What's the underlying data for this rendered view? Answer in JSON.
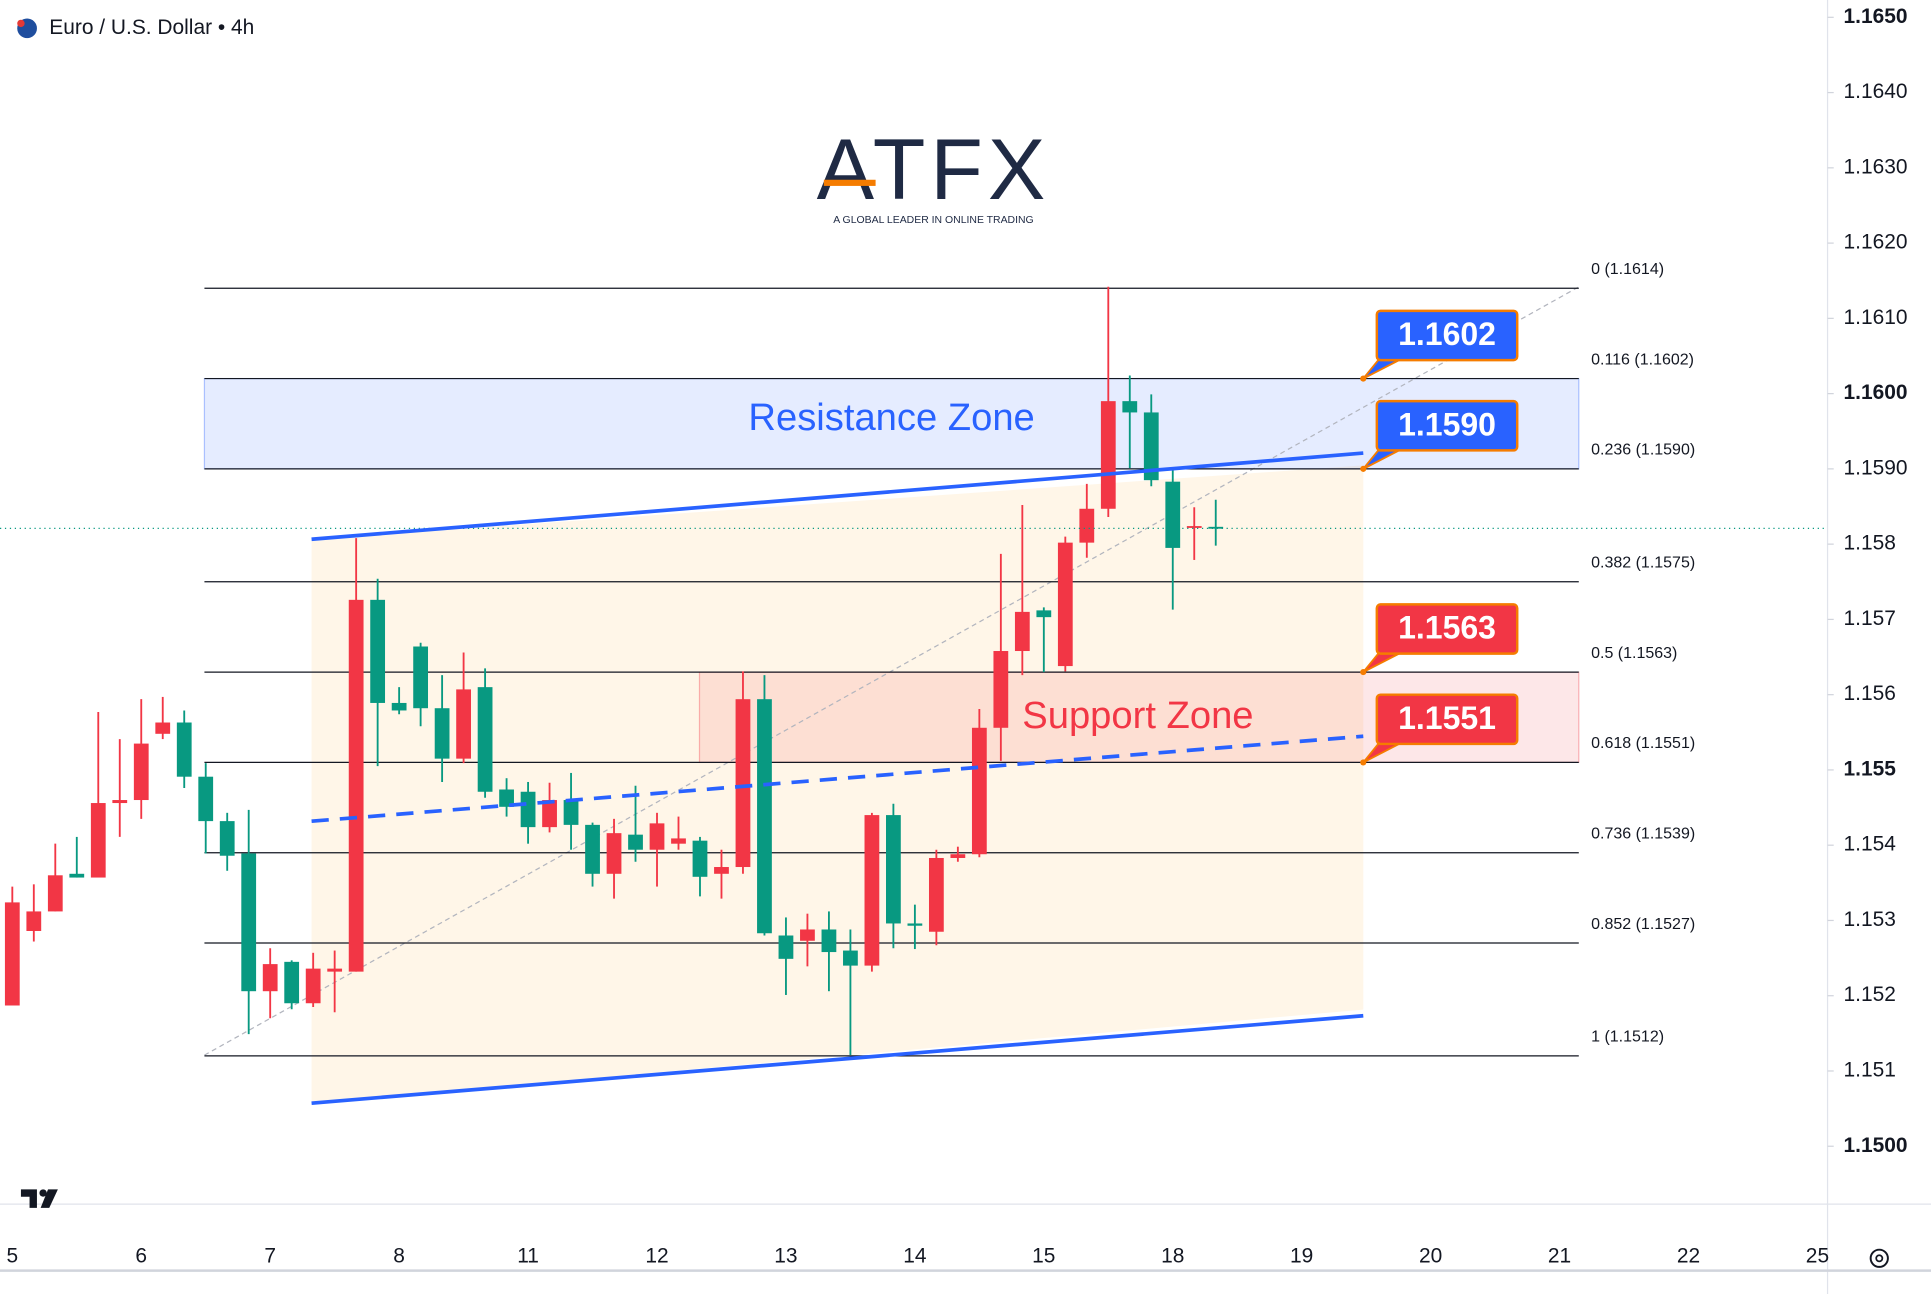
{
  "chart_data": {
    "type": "candlestick",
    "title": "Euro / U.S. Dollar • 4h",
    "watermark": {
      "name": "ATFX",
      "tagline": "A GLOBAL LEADER IN ONLINE TRADING"
    },
    "up_color": "#f23645",
    "down_color": "#089981",
    "categories": [
      "5",
      null,
      null,
      null,
      null,
      null,
      "6",
      null,
      null,
      null,
      null,
      null,
      "7",
      null,
      null,
      null,
      null,
      null,
      "8",
      null,
      null,
      null,
      null,
      null,
      "11",
      null,
      null,
      null,
      null,
      null,
      "12",
      null,
      null,
      null,
      null,
      null,
      "13",
      null,
      null,
      null,
      null,
      null,
      "14",
      null,
      null,
      null,
      null,
      null,
      "15",
      null,
      null,
      null,
      null,
      null,
      "18",
      null,
      null,
      null,
      null,
      null,
      "19",
      null,
      null,
      null,
      null,
      null,
      "20",
      null,
      null,
      null,
      null,
      null,
      "21",
      null,
      null,
      null,
      null,
      null,
      "22",
      null,
      null,
      null,
      null,
      null,
      "25"
    ],
    "open": [
      1.15187,
      1.15286,
      1.15312,
      1.15362,
      1.15357,
      1.15456,
      1.1546,
      1.15548,
      1.15563,
      1.15491,
      1.15432,
      1.15389,
      1.15206,
      1.15245,
      1.1519,
      1.15232,
      1.15232,
      1.15726,
      1.15589,
      1.15664,
      1.15582,
      1.15515,
      1.1561,
      1.15474,
      1.15471,
      1.15424,
      1.1546,
      1.15427,
      1.15362,
      1.15414,
      1.15394,
      1.15402,
      1.15406,
      1.15362,
      1.15371,
      1.15594,
      1.1528,
      1.15273,
      1.15288,
      1.1526,
      1.1524,
      1.1544,
      1.15296,
      1.15285,
      1.15383,
      1.15388,
      1.15556,
      1.15658,
      1.15712,
      1.15638,
      1.15802,
      1.15847,
      1.1599,
      1.15975,
      1.15883,
      1.15823,
      1.15823,
      null,
      null,
      null,
      null,
      null,
      null,
      null,
      null,
      null,
      null,
      null,
      null,
      null,
      null,
      null,
      null,
      null,
      null,
      null,
      null,
      null,
      null,
      null,
      null,
      null,
      null,
      null,
      null
    ],
    "high": [
      1.15345,
      1.15348,
      1.15402,
      1.15411,
      1.15577,
      1.15541,
      1.15594,
      1.15597,
      1.15579,
      1.15509,
      1.15443,
      1.15447,
      1.15263,
      1.15247,
      1.15257,
      1.1526,
      1.15808,
      1.15754,
      1.1561,
      1.15669,
      1.15626,
      1.15656,
      1.15635,
      1.15489,
      1.15484,
      1.15483,
      1.15496,
      1.1543,
      1.15435,
      1.15479,
      1.15443,
      1.15438,
      1.15411,
      1.15394,
      1.15631,
      1.15626,
      1.15304,
      1.15309,
      1.15312,
      1.15288,
      1.15443,
      1.15455,
      1.15321,
      1.15394,
      1.15398,
      1.15581,
      1.15787,
      1.15852,
      1.15716,
      1.1581,
      1.1588,
      1.16142,
      1.16024,
      1.15999,
      1.159,
      1.15849,
      1.15859,
      null,
      null,
      null,
      null,
      null,
      null,
      null,
      null,
      null,
      null,
      null,
      null,
      null,
      null,
      null,
      null,
      null,
      null,
      null,
      null,
      null,
      null,
      null,
      null,
      null,
      null,
      null,
      null
    ],
    "low": [
      1.15187,
      1.15272,
      1.15312,
      1.15357,
      1.15357,
      1.15411,
      1.15435,
      1.15541,
      1.15476,
      1.15389,
      1.15366,
      1.15149,
      1.1517,
      1.15182,
      1.15185,
      1.15178,
      1.15232,
      1.15505,
      1.15574,
      1.15558,
      1.15484,
      1.15509,
      1.15463,
      1.15438,
      1.15402,
      1.15417,
      1.15394,
      1.15345,
      1.15329,
      1.15378,
      1.15345,
      1.15394,
      1.15332,
      1.15329,
      1.15362,
      1.1528,
      1.15201,
      1.15239,
      1.15206,
      1.15121,
      1.15232,
      1.15263,
      1.15262,
      1.15267,
      1.15378,
      1.15384,
      1.15512,
      1.15626,
      1.1563,
      1.15631,
      1.15782,
      1.15836,
      1.15901,
      1.15877,
      1.15713,
      1.15779,
      1.15798,
      null,
      null,
      null,
      null,
      null,
      null,
      null,
      null,
      null,
      null,
      null,
      null,
      null,
      null,
      null,
      null,
      null,
      null,
      null,
      null,
      null,
      null,
      null,
      null,
      null,
      null,
      null,
      null
    ],
    "close": [
      1.15324,
      1.15312,
      1.1536,
      1.15357,
      1.15456,
      1.1546,
      1.15535,
      1.15563,
      1.15491,
      1.15432,
      1.15386,
      1.15206,
      1.15242,
      1.1519,
      1.15236,
      1.15236,
      1.15726,
      1.15589,
      1.15579,
      1.15582,
      1.15515,
      1.15607,
      1.15471,
      1.15451,
      1.15424,
      1.1546,
      1.15427,
      1.15362,
      1.15416,
      1.15394,
      1.15429,
      1.15409,
      1.15358,
      1.15371,
      1.15594,
      1.15283,
      1.15249,
      1.15288,
      1.15258,
      1.1524,
      1.1544,
      1.15296,
      1.15293,
      1.15383,
      1.15388,
      1.15556,
      1.15658,
      1.1571,
      1.15703,
      1.15802,
      1.15847,
      1.1599,
      1.15975,
      1.15885,
      1.15795,
      1.15824,
      1.15821,
      null,
      null,
      null,
      null,
      null,
      null,
      null,
      null,
      null,
      null,
      null,
      null,
      null,
      null,
      null,
      null,
      null,
      null,
      null,
      null,
      null,
      null,
      null,
      null,
      null,
      null,
      null,
      null
    ],
    "ylim": [
      1.14928,
      1.16523
    ],
    "yticks": [
      {
        "value": 1.165,
        "label": "1.1650"
      },
      {
        "value": 1.164,
        "label": "1.1640"
      },
      {
        "value": 1.163,
        "label": "1.1630"
      },
      {
        "value": 1.162,
        "label": "1.1620"
      },
      {
        "value": 1.161,
        "label": "1.1610"
      },
      {
        "value": 1.16,
        "label": "1.1600"
      },
      {
        "value": 1.159,
        "label": "1.1590"
      },
      1.158,
      1.157,
      1.156,
      1.155,
      1.154,
      1.153,
      1.152,
      1.151,
      {
        "value": 1.15,
        "label": "1.1500"
      }
    ],
    "grid": false,
    "fib_levels": [
      {
        "value": 1.1614,
        "label": "0 (1.1614)"
      },
      {
        "value": 1.1602,
        "label": "0.116 (1.1602)"
      },
      {
        "value": 1.159,
        "label": "0.236 (1.1590)"
      },
      {
        "value": 1.1575,
        "label": "0.382 (1.1575)"
      },
      {
        "value": 1.1563,
        "label": "0.5 (1.1563)"
      },
      {
        "value": 1.1551,
        "label": "0.618 (1.1551)"
      },
      {
        "value": 1.1539,
        "label": "0.736 (1.1539)"
      },
      {
        "value": 1.1527,
        "label": "0.852 (1.1527)"
      },
      {
        "value": 1.1512,
        "label": "1 (1.1512)"
      }
    ],
    "zones": [
      {
        "label": "Resistance Zone",
        "range": [
          1.159,
          1.1602
        ],
        "color": "#2962ff"
      },
      {
        "label": "Support Zone",
        "range": [
          1.1551,
          1.1563
        ],
        "color": "#f23645"
      }
    ],
    "callouts": [
      {
        "value": 1.1602,
        "label": "1.1602",
        "color": "#2962ff"
      },
      {
        "value": 1.159,
        "label": "1.1590",
        "color": "#2962ff"
      },
      {
        "value": 1.1563,
        "label": "1.1563",
        "color": "#f23645"
      },
      {
        "value": 1.1551,
        "label": "1.1551",
        "color": "#f23645"
      }
    ]
  }
}
